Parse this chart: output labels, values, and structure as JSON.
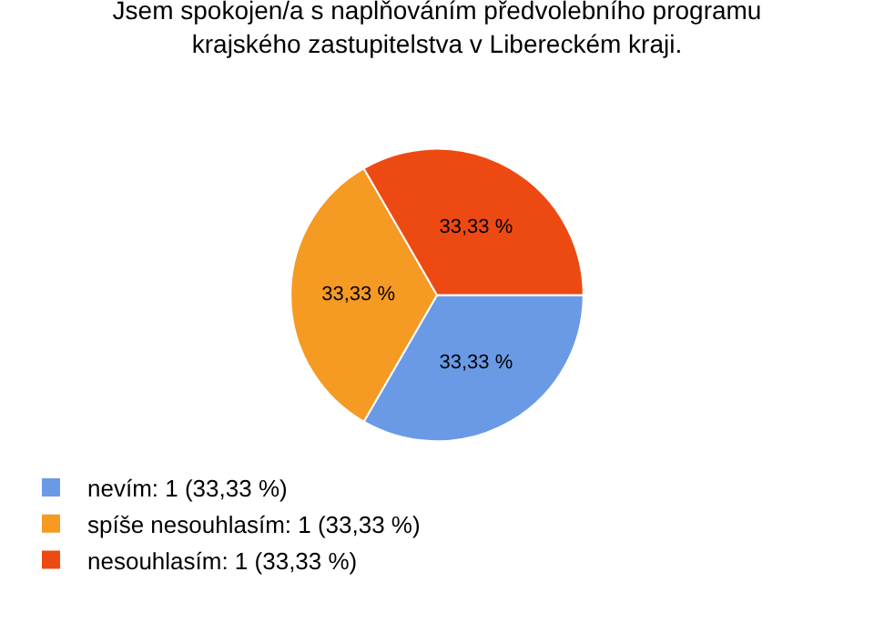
{
  "chart_data": {
    "type": "pie",
    "title": "Jsem spokojen/a s naplňováním předvolebního programu krajského zastupitelstva v Libereckém kraji.",
    "categories": [
      "nevím: 1 (33,33 %)",
      "spíše nesouhlasím: 1 (33,33 %)",
      "nesouhlasím: 1 (33,33 %)"
    ],
    "values": [
      33.33,
      33.33,
      33.33
    ],
    "value_labels": [
      "33,33 %",
      "33,33 %",
      "33,33 %"
    ],
    "colors": [
      "#6a9ae6",
      "#f59a22",
      "#ec4a12"
    ],
    "legend": "bottom left"
  }
}
